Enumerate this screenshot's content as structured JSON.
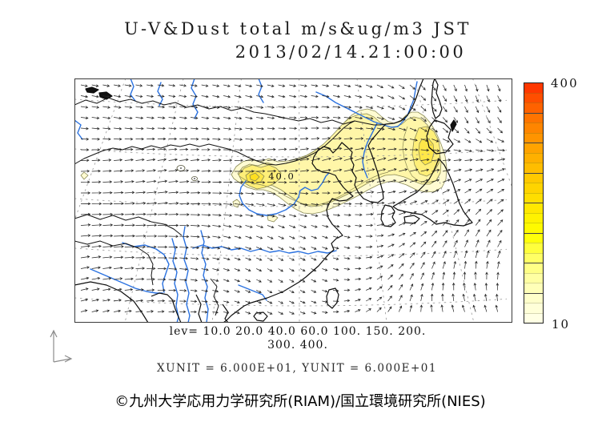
{
  "title": {
    "line1": "U-V&Dust total m/s&ug/m3 JST",
    "line2": "2013/02/14.21:00:00"
  },
  "colorbar": {
    "max_label": "400",
    "min_label": "10",
    "segment_colors": [
      "#FF3800",
      "#FF4E00",
      "#FF6200",
      "#FF7400",
      "#FF8500",
      "#FF9400",
      "#FFA300",
      "#FFB000",
      "#FFBD00",
      "#FFC900",
      "#FFD400",
      "#FFDE00",
      "#FFE800",
      "#FFF200",
      "#FFFA00",
      "#FFFF0A",
      "#FFFF3C",
      "#FFFF64",
      "#FFFF86",
      "#FFFFA2",
      "#FFFFB8",
      "#FFFFCA",
      "#FFFFD8",
      "#FFFFE4"
    ],
    "majors_every": 3
  },
  "legend": {
    "lev_line1": "lev= 10.0 20.0 40.0 60.0 100. 150. 200.",
    "lev_line2": "300. 400.",
    "units_line": "XUNIT = 6.000E+01, YUNIT = 6.000E+01"
  },
  "footer": {
    "copyright": "©九州大学応用力学研究所(RIAM)/国立環境研究所(NIES)"
  },
  "map": {
    "contour_label": "40.0",
    "levels": [
      10,
      20,
      40,
      60,
      100,
      150,
      200,
      300,
      400
    ]
  },
  "plume": {
    "fill_colors": {
      "10": "#FFFBD2",
      "20": "#FFF6A8",
      "40": "#FFEF78",
      "60": "#FFE748",
      "100": "#FFDF20"
    },
    "stroke": "#8a8a55",
    "polygons": [
      {
        "level": 10,
        "pts": [
          [
            196,
            120
          ],
          [
            202,
            110
          ],
          [
            210,
            104
          ],
          [
            220,
            101
          ],
          [
            232,
            104
          ],
          [
            243,
            100
          ],
          [
            254,
            104
          ],
          [
            266,
            103
          ],
          [
            278,
            100
          ],
          [
            290,
            96
          ],
          [
            302,
            89
          ],
          [
            314,
            80
          ],
          [
            326,
            68
          ],
          [
            336,
            56
          ],
          [
            346,
            46
          ],
          [
            356,
            40
          ],
          [
            366,
            38
          ],
          [
            376,
            41
          ],
          [
            384,
            48
          ],
          [
            392,
            54
          ],
          [
            400,
            56
          ],
          [
            408,
            52
          ],
          [
            414,
            46
          ],
          [
            421,
            42
          ],
          [
            429,
            42
          ],
          [
            437,
            47
          ],
          [
            445,
            56
          ],
          [
            452,
            68
          ],
          [
            458,
            82
          ],
          [
            463,
            97
          ],
          [
            465,
            112
          ],
          [
            464,
            126
          ],
          [
            459,
            136
          ],
          [
            450,
            141
          ],
          [
            439,
            142
          ],
          [
            427,
            139
          ],
          [
            415,
            133
          ],
          [
            403,
            129
          ],
          [
            391,
            129
          ],
          [
            379,
            133
          ],
          [
            367,
            139
          ],
          [
            355,
            146
          ],
          [
            343,
            152
          ],
          [
            331,
            158
          ],
          [
            319,
            163
          ],
          [
            308,
            167
          ],
          [
            297,
            169
          ],
          [
            286,
            168
          ],
          [
            276,
            163
          ],
          [
            266,
            156
          ],
          [
            256,
            148
          ],
          [
            246,
            142
          ],
          [
            236,
            139
          ],
          [
            226,
            139
          ],
          [
            216,
            136
          ],
          [
            206,
            130
          ],
          [
            199,
            125
          ]
        ]
      },
      {
        "level": 20,
        "pts": [
          [
            204,
            119
          ],
          [
            210,
            111
          ],
          [
            219,
            107
          ],
          [
            229,
            109
          ],
          [
            240,
            105
          ],
          [
            251,
            108
          ],
          [
            263,
            106
          ],
          [
            275,
            103
          ],
          [
            287,
            98
          ],
          [
            299,
            91
          ],
          [
            311,
            82
          ],
          [
            323,
            70
          ],
          [
            334,
            58
          ],
          [
            344,
            49
          ],
          [
            355,
            45
          ],
          [
            365,
            44
          ],
          [
            374,
            48
          ],
          [
            382,
            55
          ],
          [
            391,
            60
          ],
          [
            400,
            61
          ],
          [
            409,
            57
          ],
          [
            416,
            51
          ],
          [
            424,
            48
          ],
          [
            432,
            50
          ],
          [
            440,
            57
          ],
          [
            447,
            67
          ],
          [
            452,
            79
          ],
          [
            456,
            92
          ],
          [
            458,
            105
          ],
          [
            457,
            118
          ],
          [
            452,
            127
          ],
          [
            444,
            132
          ],
          [
            434,
            132
          ],
          [
            423,
            128
          ],
          [
            412,
            123
          ],
          [
            400,
            120
          ],
          [
            388,
            121
          ],
          [
            376,
            126
          ],
          [
            364,
            132
          ],
          [
            352,
            139
          ],
          [
            340,
            145
          ],
          [
            328,
            151
          ],
          [
            317,
            156
          ],
          [
            306,
            159
          ],
          [
            296,
            160
          ],
          [
            287,
            158
          ],
          [
            278,
            153
          ],
          [
            268,
            146
          ],
          [
            258,
            139
          ],
          [
            248,
            134
          ],
          [
            238,
            132
          ],
          [
            228,
            132
          ],
          [
            218,
            129
          ],
          [
            210,
            125
          ]
        ]
      },
      {
        "level": 40,
        "pts": [
          [
            205,
            120
          ],
          [
            212,
            112
          ],
          [
            222,
            108
          ],
          [
            233,
            111
          ],
          [
            243,
            108
          ],
          [
            252,
            112
          ],
          [
            258,
            118
          ],
          [
            256,
            126
          ],
          [
            248,
            132
          ],
          [
            238,
            136
          ],
          [
            228,
            138
          ],
          [
            218,
            134
          ],
          [
            209,
            128
          ]
        ]
      },
      {
        "level": 40,
        "pts": [
          [
            430,
            62
          ],
          [
            440,
            60
          ],
          [
            449,
            66
          ],
          [
            455,
            78
          ],
          [
            457,
            92
          ],
          [
            455,
            106
          ],
          [
            449,
            117
          ],
          [
            440,
            122
          ],
          [
            431,
            119
          ],
          [
            425,
            108
          ],
          [
            422,
            94
          ],
          [
            424,
            78
          ]
        ]
      },
      {
        "level": 60,
        "pts": [
          [
            214,
            121
          ],
          [
            222,
            115
          ],
          [
            231,
            117
          ],
          [
            237,
            122
          ],
          [
            233,
            129
          ],
          [
            224,
            132
          ],
          [
            216,
            128
          ]
        ]
      },
      {
        "level": 60,
        "pts": [
          [
            434,
            76
          ],
          [
            442,
            75
          ],
          [
            448,
            82
          ],
          [
            449,
            93
          ],
          [
            446,
            104
          ],
          [
            438,
            108
          ],
          [
            432,
            102
          ],
          [
            430,
            91
          ],
          [
            431,
            81
          ]
        ]
      },
      {
        "level": 100,
        "pts": [
          [
            219,
            121
          ],
          [
            226,
            118
          ],
          [
            231,
            123
          ],
          [
            226,
            128
          ],
          [
            220,
            126
          ]
        ]
      },
      {
        "level": 10,
        "pts": [
          [
            8,
            121
          ],
          [
            12,
            117
          ],
          [
            17,
            121
          ],
          [
            12,
            126
          ]
        ]
      },
      {
        "level": 10,
        "pts": [
          [
            198,
            154
          ],
          [
            203,
            151
          ],
          [
            207,
            155
          ],
          [
            204,
            161
          ],
          [
            199,
            159
          ]
        ]
      },
      {
        "level": 10,
        "pts": [
          [
            241,
            172
          ],
          [
            248,
            170
          ],
          [
            254,
            174
          ],
          [
            249,
            179
          ],
          [
            242,
            177
          ]
        ]
      }
    ]
  },
  "wind_field": {
    "cols": [
      5,
      54,
      103,
      152,
      201,
      250,
      299,
      348,
      397,
      446,
      495,
      544
    ],
    "rows": [
      8,
      56,
      104,
      152,
      200,
      248,
      296
    ],
    "dirs": [
      [
        -12,
        -10,
        -8,
        -10,
        -14,
        -12,
        -10,
        -16,
        -30,
        -55,
        -75,
        -65
      ],
      [
        -6,
        -8,
        -5,
        -8,
        -10,
        -6,
        -2,
        -6,
        -18,
        -40,
        -60,
        -50
      ],
      [
        2,
        6,
        9,
        6,
        2,
        8,
        14,
        18,
        16,
        6,
        8,
        18
      ],
      [
        0,
        2,
        6,
        0,
        -6,
        -12,
        -6,
        2,
        12,
        28,
        38,
        32
      ],
      [
        6,
        2,
        0,
        -6,
        -16,
        -26,
        -22,
        -12,
        22,
        48,
        62,
        52
      ],
      [
        12,
        6,
        0,
        -12,
        -22,
        -32,
        -26,
        2,
        48,
        72,
        92,
        82
      ],
      [
        16,
        10,
        5,
        0,
        -16,
        -26,
        -16,
        22,
        62,
        96,
        112,
        102
      ]
    ],
    "speeds": [
      [
        0.5,
        0.5,
        0.45,
        0.5,
        0.5,
        0.5,
        0.5,
        0.5,
        0.5,
        0.5,
        0.5,
        0.5
      ],
      [
        0.6,
        0.65,
        0.6,
        0.6,
        0.6,
        0.55,
        0.6,
        0.6,
        0.55,
        0.5,
        0.5,
        0.5
      ],
      [
        0.7,
        0.75,
        0.8,
        0.8,
        0.75,
        0.8,
        0.85,
        0.9,
        0.85,
        0.7,
        0.6,
        0.6
      ],
      [
        0.9,
        0.95,
        1.0,
        0.9,
        0.8,
        0.7,
        0.6,
        0.6,
        0.6,
        0.6,
        0.6,
        0.6
      ],
      [
        0.9,
        1.0,
        0.95,
        0.8,
        0.5,
        0.4,
        0.35,
        0.4,
        0.5,
        0.6,
        0.65,
        0.6
      ],
      [
        0.7,
        0.8,
        0.7,
        0.5,
        0.35,
        0.3,
        0.3,
        0.35,
        0.5,
        0.6,
        0.6,
        0.55
      ],
      [
        0.45,
        0.5,
        0.45,
        0.35,
        0.3,
        0.3,
        0.3,
        0.35,
        0.45,
        0.55,
        0.55,
        0.5
      ]
    ]
  },
  "chart_data": {
    "type": "heatmap",
    "title": "U-V&Dust total m/s&ug/m3 JST",
    "subtitle": "2013/02/14.21:00:00",
    "region": "East Asia (India to Japan/Sakhalin)",
    "quantity": "surface dust concentration (ug/m3) with wind vectors (m/s)",
    "contour_levels": [
      10.0,
      20.0,
      40.0,
      60.0,
      100,
      150,
      200,
      300,
      400
    ],
    "colorbar_range": [
      10,
      400
    ],
    "labeled_contour_value": 40.0,
    "vector_units": "XUNIT=6.000E+01, YUNIT=6.000E+01",
    "plume_description": "yellow dust band from Gobi/Inner-Mongolia source (peak >100 ug/m3) extending ENE across NE China (secondary max >60) to the Sea of Japan; westerly wind flow over China, cyclonic turning east of Japan"
  }
}
